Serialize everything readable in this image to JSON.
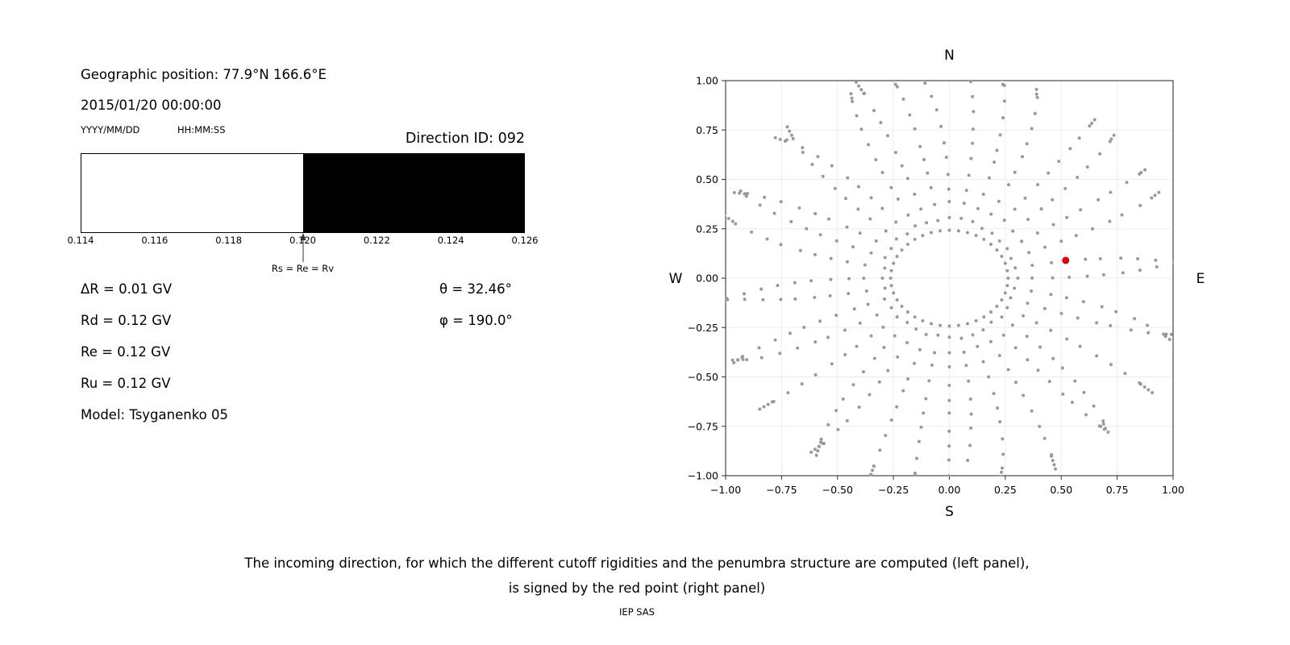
{
  "info": {
    "geographic_position": "Geographic position: 77.9°N 166.6°E",
    "datetime": "2015/01/20 00:00:00",
    "date_format": "YYYY/MM/DD",
    "time_format": "HH:MM:SS",
    "direction_id": "Direction ID: 092",
    "delta_r": "ΔR = 0.01 GV",
    "rd": "Rd = 0.12 GV",
    "re": "Re = 0.12 GV",
    "ru": "Ru = 0.12 GV",
    "model": "Model: Tsyganenko 05",
    "theta": "θ = 32.46°",
    "phi": "φ = 190.0°"
  },
  "caption": {
    "line1": "The incoming direction, for which the different cutoff rigidities and the penumbra structure are computed (left panel),",
    "line2": "is signed by the red point (right panel)",
    "credit": "IEP SAS"
  },
  "chart_data": [
    {
      "type": "bar",
      "name": "penumbra-structure",
      "xlabel_units": "GV",
      "x_range": [
        0.114,
        0.126
      ],
      "x_ticks": [
        "0.114",
        "0.116",
        "0.118",
        "0.120",
        "0.122",
        "0.124",
        "0.126"
      ],
      "segments": [
        {
          "from": 0.114,
          "to": 0.12,
          "color": "#ffffff"
        },
        {
          "from": 0.12,
          "to": 0.126,
          "color": "#000000"
        }
      ],
      "marker": {
        "x": 0.12,
        "label": "Rs = Re = Rv"
      }
    },
    {
      "type": "scatter",
      "name": "incoming-direction-map",
      "xlim": [
        -1.0,
        1.0
      ],
      "ylim": [
        -1.0,
        1.0
      ],
      "x_ticks": [
        "−1.00",
        "−0.75",
        "−0.50",
        "−0.25",
        "0.00",
        "0.25",
        "0.50",
        "0.75",
        "1.00"
      ],
      "y_ticks": [
        "1.00",
        "0.75",
        "0.50",
        "0.25",
        "0.00",
        "−0.25",
        "−0.50",
        "−0.75",
        "−1.00"
      ],
      "compass": {
        "north": "N",
        "south": "S",
        "east": "E",
        "west": "W"
      },
      "grid": true,
      "dot_color": "#999999",
      "pattern": {
        "num_rays": 36,
        "ray_r_start": 0.3,
        "ray_r_end": 1.0,
        "dots_per_ray": 10,
        "curve_deg": 7,
        "inner_ring_radius": 0.25,
        "inner_ring_dots": 40
      },
      "red_point": {
        "x": 0.52,
        "y": 0.09,
        "color": "#dd0000"
      }
    }
  ]
}
